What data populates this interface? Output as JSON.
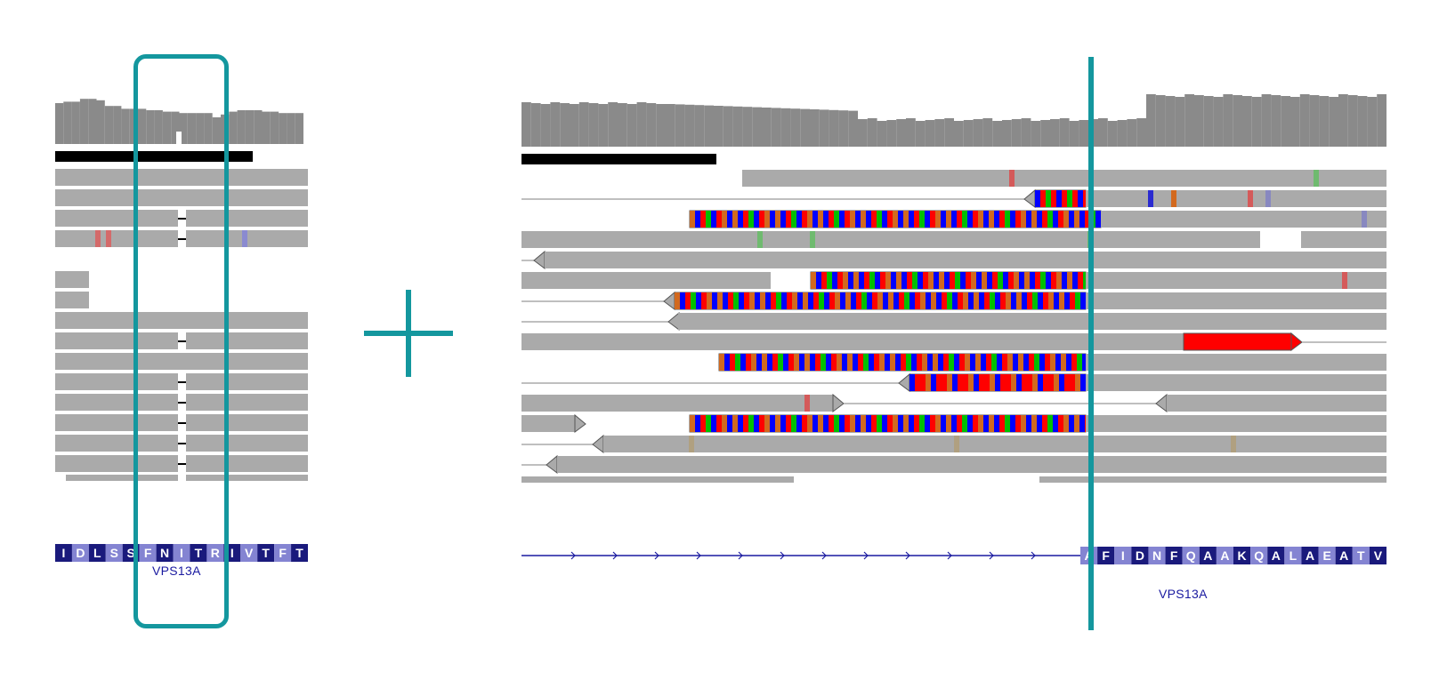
{
  "accent_color": "#14979e",
  "left_panel": {
    "gene_name": "VPS13A",
    "amino_acids": [
      "I",
      "D",
      "L",
      "S",
      "S",
      "F",
      "N",
      "I",
      "T",
      "R",
      "I",
      "V",
      "T",
      "F",
      "T"
    ]
  },
  "right_panel": {
    "gene_name": "VPS13A",
    "amino_acids": [
      "A",
      "F",
      "I",
      "D",
      "N",
      "F",
      "Q",
      "A",
      "A",
      "K",
      "Q",
      "A",
      "L",
      "A",
      "E",
      "A",
      "T",
      "V"
    ]
  },
  "colors": {
    "read": "#aaaaaa",
    "coverage": "#8a8a8a",
    "aa_dark": "#1a1a7c",
    "aa_light": "#8484d2",
    "gene_line": "#1a1aa0",
    "softclip": [
      "#0000ff",
      "#ff0000",
      "#00c000",
      "#d2691e"
    ]
  },
  "icons": {
    "plus": "plus-icon",
    "highlight_box": "highlight-box",
    "position_marker": "vertical-marker-line"
  }
}
